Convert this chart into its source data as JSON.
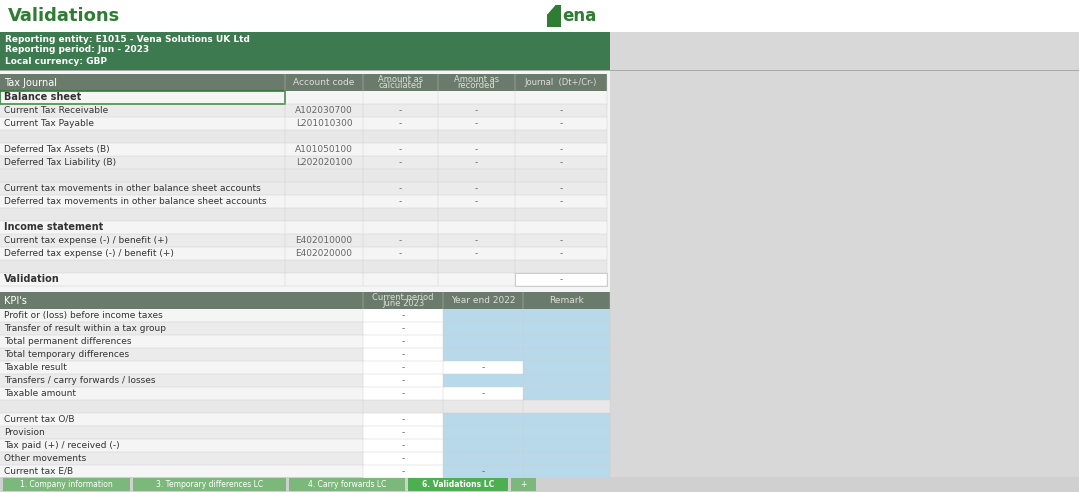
{
  "title": "Validations",
  "title_color": "#2e7d32",
  "vena_green": "#2e7d32",
  "info_bg": "#3d7a50",
  "info_lines": [
    "Reporting entity: E1015 - Vena Solutions UK Ltd",
    "Reporting period: Jun - 2023",
    "Local currency: GBP"
  ],
  "table1_header_bg": "#6b7b6b",
  "table1_cols": [
    "Tax Journal",
    "Account code",
    "Amount as\ncalculated",
    "Amount as\nrecorded",
    "Journal  (Dt+/Cr-)"
  ],
  "table1_rows": [
    [
      "Balance sheet",
      "",
      "",
      "",
      ""
    ],
    [
      "Current Tax Receivable",
      "A102030700",
      "-",
      "-",
      "-"
    ],
    [
      "Current Tax Payable",
      "L201010300",
      "-",
      "-",
      "-"
    ],
    [
      "",
      "",
      "",
      "",
      ""
    ],
    [
      "Deferred Tax Assets (B)",
      "A101050100",
      "-",
      "-",
      "-"
    ],
    [
      "Deferred Tax Liability (B)",
      "L202020100",
      "-",
      "-",
      "-"
    ],
    [
      "",
      "",
      "",
      "",
      ""
    ],
    [
      "Current tax movements in other balance sheet accounts",
      "",
      "-",
      "-",
      "-"
    ],
    [
      "Deferred tax movements in other balance sheet accounts",
      "",
      "-",
      "-",
      "-"
    ],
    [
      "",
      "",
      "",
      "",
      ""
    ],
    [
      "Income statement",
      "",
      "",
      "",
      ""
    ],
    [
      "Current tax expense (-) / benefit (+)",
      "E402010000",
      "-",
      "-",
      "-"
    ],
    [
      "Deferred tax expense (-) / benefit (+)",
      "E402020000",
      "-",
      "-",
      "-"
    ],
    [
      "",
      "",
      "",
      "",
      ""
    ],
    [
      "Validation",
      "",
      "",
      "",
      "-"
    ]
  ],
  "table2_header_bg": "#6b7b6b",
  "table2_cols": [
    "KPI's",
    "Current period\nJune 2023",
    "Year end 2022",
    "Remark"
  ],
  "table2_rows": [
    [
      "Profit or (loss) before income taxes",
      "-",
      "",
      ""
    ],
    [
      "Transfer of result within a tax group",
      "-",
      "",
      ""
    ],
    [
      "Total permanent differences",
      "-",
      "",
      ""
    ],
    [
      "Total temporary differences",
      "-",
      "",
      ""
    ],
    [
      "Taxable result",
      "-",
      "-",
      ""
    ],
    [
      "Transfers / carry forwards / losses",
      "-",
      "",
      ""
    ],
    [
      "Taxable amount",
      "-",
      "-",
      ""
    ],
    [
      "",
      "",
      "",
      ""
    ],
    [
      "Current tax O/B",
      "-",
      "",
      ""
    ],
    [
      "Provision",
      "-",
      "",
      ""
    ],
    [
      "Tax paid (+) / received (-)",
      "-",
      "",
      ""
    ],
    [
      "Other movements",
      "-",
      "",
      ""
    ],
    [
      "Current tax E/B",
      "-",
      "-",
      ""
    ]
  ],
  "tab_labels": [
    "1. Company information",
    "3. Temporary differences LC",
    "4. Carry forwards LC",
    "6. Validations LC",
    "+"
  ],
  "active_tab": 3,
  "light_blue": "#b8d9ea",
  "white": "#ffffff",
  "bg_color": "#c8c8c8",
  "content_bg": "#f0f0f0",
  "row_even": "#f5f5f5",
  "row_odd": "#ebebeb",
  "row_empty": "#e8e8e8",
  "green_border": "#2e7d32",
  "text_dark": "#333333",
  "text_mid": "#666666",
  "text_header": "#dddddd",
  "sep_color": "#cccccc"
}
